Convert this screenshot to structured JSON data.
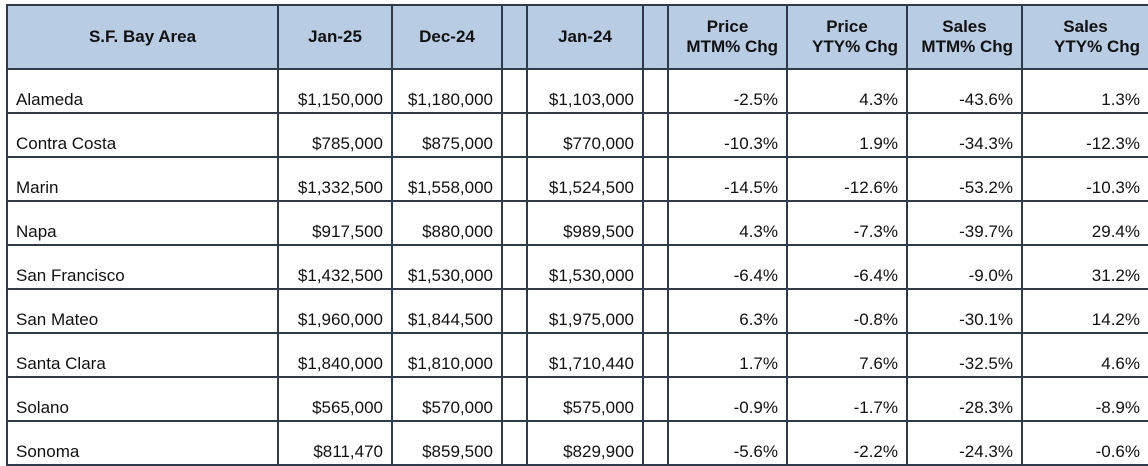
{
  "chart_data": {
    "type": "table",
    "header": {
      "area": "S.F. Bay Area",
      "jan25": "Jan-25",
      "dec24": "Dec-24",
      "jan24": "Jan-24",
      "price_mtm": [
        "Price",
        "MTM% Chg"
      ],
      "price_ytd": [
        "Price",
        "YTY% Chg"
      ],
      "sales_mtm": [
        "Sales",
        "MTM% Chg"
      ],
      "sales_ytd": [
        "Sales",
        "YTY% Chg"
      ]
    },
    "rows": [
      {
        "area": "Alameda",
        "jan25": "$1,150,000",
        "dec24": "$1,180,000",
        "jan24": "$1,103,000",
        "price_mtm": "-2.5%",
        "price_ytd": "4.3%",
        "sales_mtm": "-43.6%",
        "sales_ytd": "1.3%"
      },
      {
        "area": "Contra Costa",
        "jan25": "$785,000",
        "dec24": "$875,000",
        "jan24": "$770,000",
        "price_mtm": "-10.3%",
        "price_ytd": "1.9%",
        "sales_mtm": "-34.3%",
        "sales_ytd": "-12.3%"
      },
      {
        "area": "Marin",
        "jan25": "$1,332,500",
        "dec24": "$1,558,000",
        "jan24": "$1,524,500",
        "price_mtm": "-14.5%",
        "price_ytd": "-12.6%",
        "sales_mtm": "-53.2%",
        "sales_ytd": "-10.3%"
      },
      {
        "area": "Napa",
        "jan25": "$917,500",
        "dec24": "$880,000",
        "jan24": "$989,500",
        "price_mtm": "4.3%",
        "price_ytd": "-7.3%",
        "sales_mtm": "-39.7%",
        "sales_ytd": "29.4%"
      },
      {
        "area": "San Francisco",
        "jan25": "$1,432,500",
        "dec24": "$1,530,000",
        "jan24": "$1,530,000",
        "price_mtm": "-6.4%",
        "price_ytd": "-6.4%",
        "sales_mtm": "-9.0%",
        "sales_ytd": "31.2%"
      },
      {
        "area": "San Mateo",
        "jan25": "$1,960,000",
        "dec24": "$1,844,500",
        "jan24": "$1,975,000",
        "price_mtm": "6.3%",
        "price_ytd": "-0.8%",
        "sales_mtm": "-30.1%",
        "sales_ytd": "14.2%"
      },
      {
        "area": "Santa Clara",
        "jan25": "$1,840,000",
        "dec24": "$1,810,000",
        "jan24": "$1,710,440",
        "price_mtm": "1.7%",
        "price_ytd": "7.6%",
        "sales_mtm": "-32.5%",
        "sales_ytd": "4.6%"
      },
      {
        "area": "Solano",
        "jan25": "$565,000",
        "dec24": "$570,000",
        "jan24": "$575,000",
        "price_mtm": "-0.9%",
        "price_ytd": "-1.7%",
        "sales_mtm": "-28.3%",
        "sales_ytd": "-8.9%"
      },
      {
        "area": "Sonoma",
        "jan25": "$811,470",
        "dec24": "$859,500",
        "jan24": "$829,900",
        "price_mtm": "-5.6%",
        "price_ytd": "-2.2%",
        "sales_mtm": "-24.3%",
        "sales_ytd": "-0.6%"
      }
    ]
  }
}
